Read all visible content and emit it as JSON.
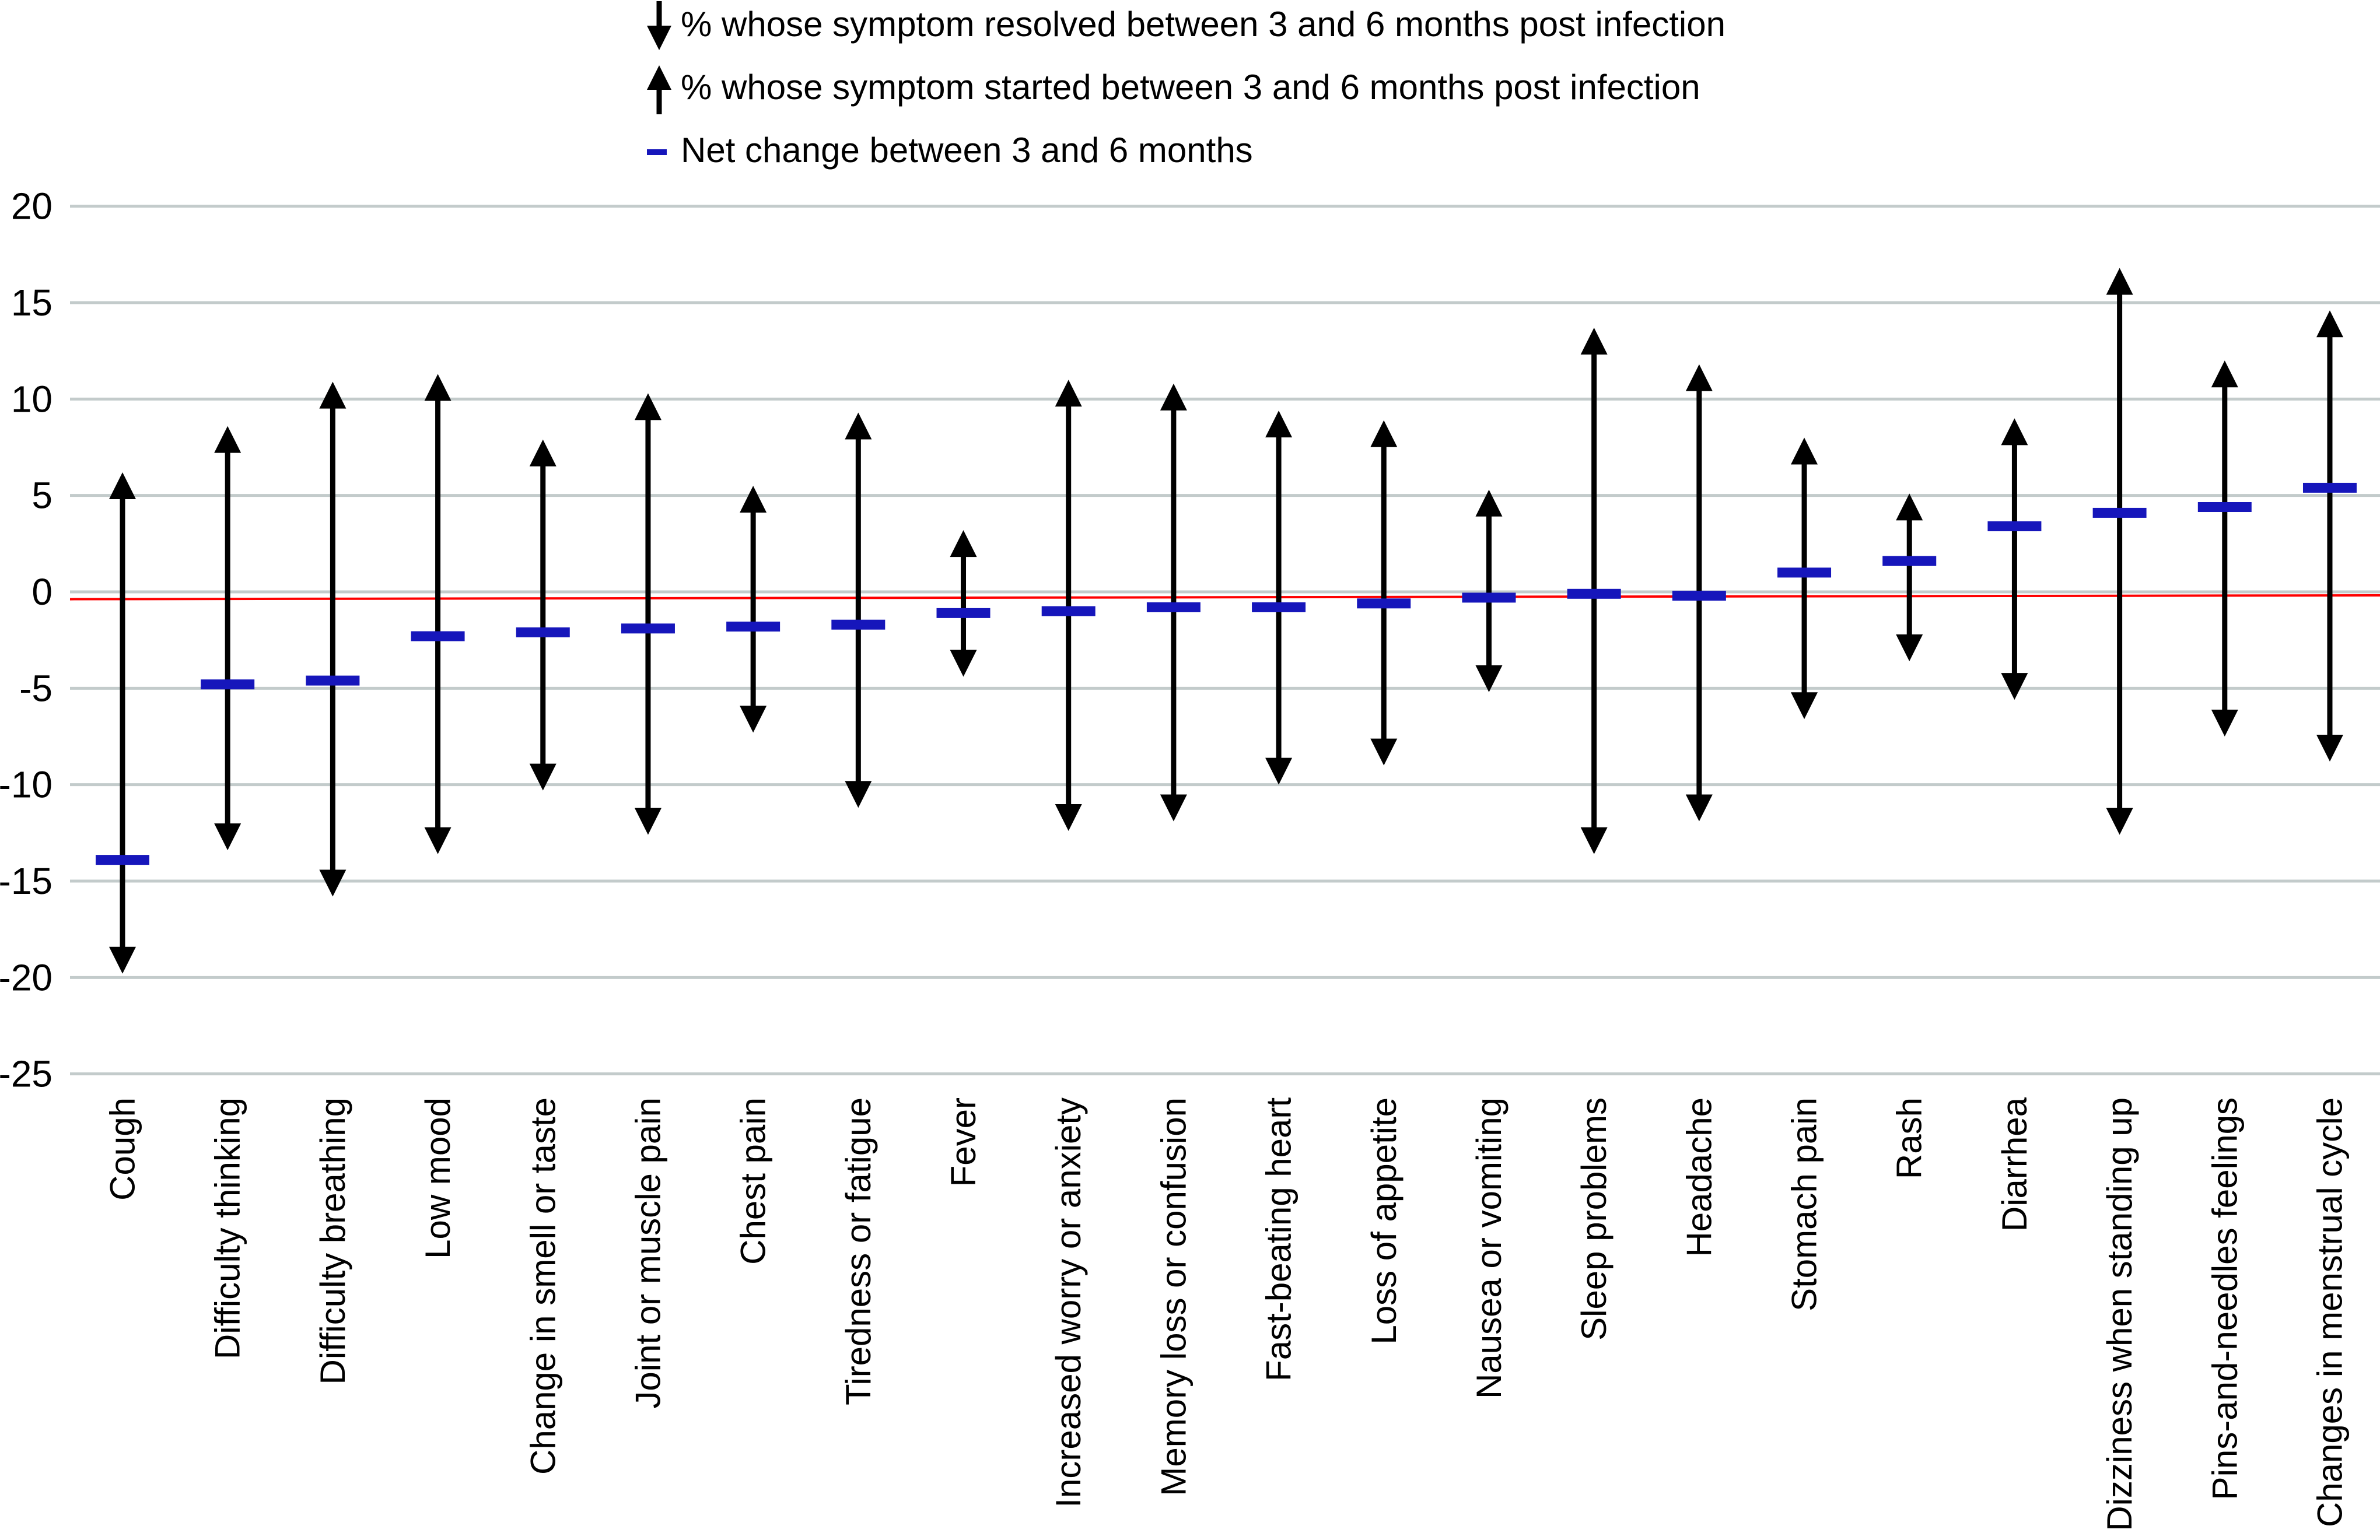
{
  "legend": {
    "items": [
      {
        "symbol": "down-arrow-icon",
        "label": "% whose symptom resolved between 3 and 6 months post infection"
      },
      {
        "symbol": "up-arrow-icon",
        "label": "% whose symptom started between 3 and 6 months post infection"
      },
      {
        "symbol": "net-dash-icon",
        "label": "Net change between 3 and 6 months"
      }
    ]
  },
  "colors": {
    "arrow": "#000000",
    "net_change": "#1616bb",
    "baseline": "#ff0000",
    "gridline": "#c3cbcb",
    "text": "#000000"
  },
  "chart_data": {
    "type": "range-arrow",
    "title": "",
    "xlabel": "",
    "ylabel": "",
    "ylim": [
      -25,
      20
    ],
    "yticks": [
      20,
      15,
      10,
      5,
      0,
      -5,
      -10,
      -15,
      -20,
      -25
    ],
    "grid": true,
    "legend_position": "top",
    "baseline_value": -0.3,
    "categories": [
      "Cough",
      "Difficulty thinking",
      "Difficulty breathing",
      "Low mood",
      "Change in smell or taste",
      "Joint or muscle pain",
      "Chest pain",
      "Tiredness or fatigue",
      "Fever",
      "Increased worry or anxiety",
      "Memory loss or confusion",
      "Fast-beating heart",
      "Loss of appetite",
      "Nausea or vomiting",
      "Sleep problems",
      "Headache",
      "Stomach pain",
      "Rash",
      "Diarrhea",
      "Dizziness when standing up",
      "Pins-and-needles feelings",
      "Changes in menstrual cycle"
    ],
    "series": [
      {
        "name": "% whose symptom started between 3 and 6 months post infection",
        "marker": "up-arrow",
        "values": [
          6.2,
          8.6,
          10.9,
          11.3,
          7.9,
          10.3,
          5.5,
          9.3,
          3.2,
          11.0,
          10.8,
          9.4,
          8.9,
          5.3,
          13.7,
          11.8,
          8.0,
          5.1,
          9.0,
          16.8,
          12.0,
          14.6
        ]
      },
      {
        "name": "% whose symptom resolved between 3 and 6 months post infection",
        "marker": "down-arrow",
        "values": [
          -19.8,
          -13.4,
          -15.8,
          -13.6,
          -10.3,
          -12.6,
          -7.3,
          -11.2,
          -4.4,
          -12.4,
          -11.9,
          -10.0,
          -9.0,
          -5.2,
          -13.6,
          -11.9,
          -6.6,
          -3.6,
          -5.6,
          -12.6,
          -7.5,
          -8.8
        ]
      },
      {
        "name": "Net change between 3 and 6 months",
        "marker": "net-dash",
        "values": [
          -13.9,
          -4.8,
          -4.6,
          -2.3,
          -2.1,
          -1.9,
          -1.8,
          -1.7,
          -1.1,
          -1.0,
          -0.8,
          -0.8,
          -0.6,
          -0.3,
          -0.1,
          -0.2,
          1.0,
          1.6,
          3.4,
          4.1,
          4.4,
          5.4
        ]
      }
    ]
  }
}
